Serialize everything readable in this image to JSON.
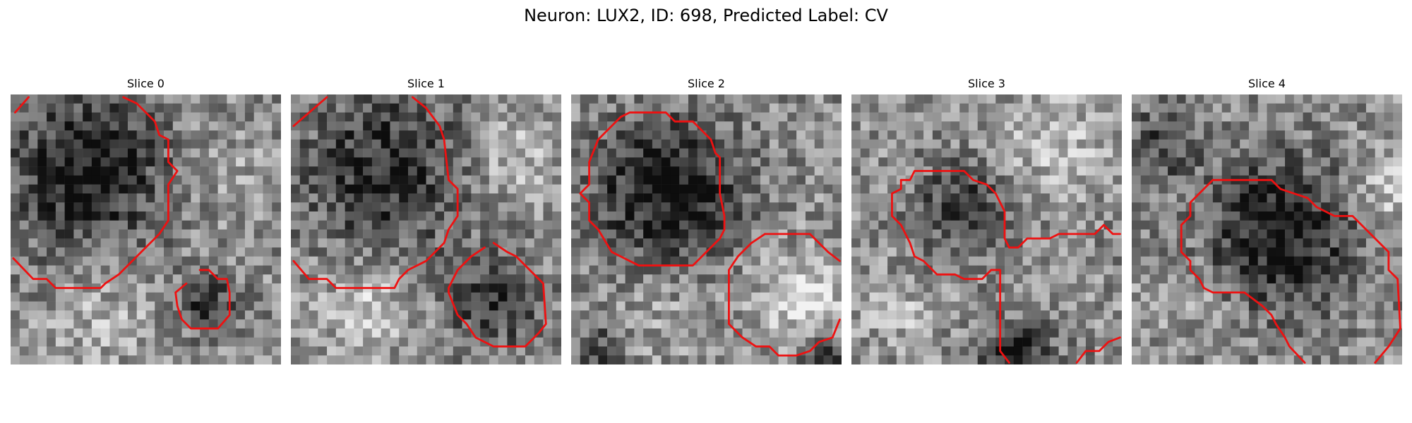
{
  "figure": {
    "title": "Neuron: LUX2, ID: 698, Predicted Label: CV"
  },
  "contour_color": "#ee1111",
  "colormap": "grayscale",
  "slices": [
    {
      "label": "Slice 0"
    },
    {
      "label": "Slice 1"
    },
    {
      "label": "Slice 2"
    },
    {
      "label": "Slice 3"
    },
    {
      "label": "Slice 4"
    }
  ]
}
